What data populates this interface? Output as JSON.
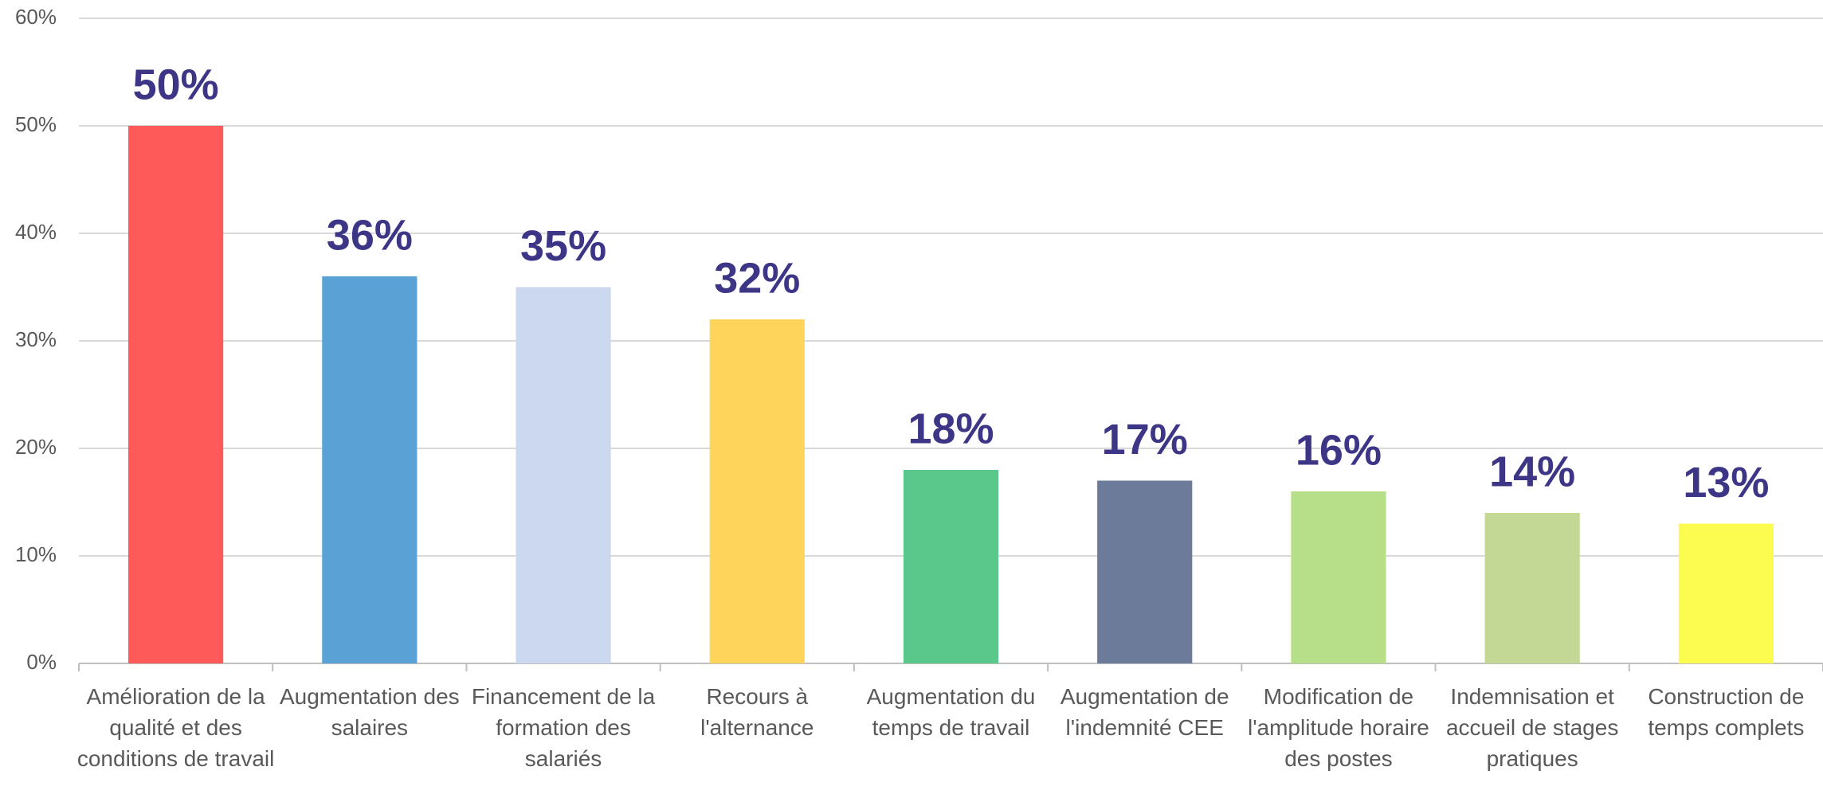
{
  "chart_data": {
    "type": "bar",
    "categories": [
      "Amélioration de la qualité et des conditions de travail",
      "Augmentation des salaires",
      "Financement de la formation des salariés",
      "Recours à l'alternance",
      "Augmentation du temps de travail",
      "Augmentation de l'indemnité CEE",
      "Modification de l'amplitude horaire des postes",
      "Indemnisation et accueil de stages pratiques",
      "Construction de temps complets"
    ],
    "values": [
      50,
      36,
      35,
      32,
      18,
      17,
      16,
      14,
      13
    ],
    "value_labels": [
      "50%",
      "36%",
      "35%",
      "32%",
      "18%",
      "17%",
      "16%",
      "14%",
      "13%"
    ],
    "colors": [
      "#ff5a5a",
      "#5aa2d6",
      "#cbd8f0",
      "#fed45a",
      "#5ac88a",
      "#6b7b99",
      "#b7df8a",
      "#c2d894",
      "#fcfc50"
    ],
    "ylim": [
      0,
      60
    ],
    "yticks": [
      {
        "value": 0,
        "label": "0%"
      },
      {
        "value": 10,
        "label": "10%"
      },
      {
        "value": 20,
        "label": "20%"
      },
      {
        "value": 30,
        "label": "30%"
      },
      {
        "value": 40,
        "label": "40%"
      },
      {
        "value": 50,
        "label": "50%"
      },
      {
        "value": 60,
        "label": "60%"
      }
    ],
    "grid": true
  }
}
